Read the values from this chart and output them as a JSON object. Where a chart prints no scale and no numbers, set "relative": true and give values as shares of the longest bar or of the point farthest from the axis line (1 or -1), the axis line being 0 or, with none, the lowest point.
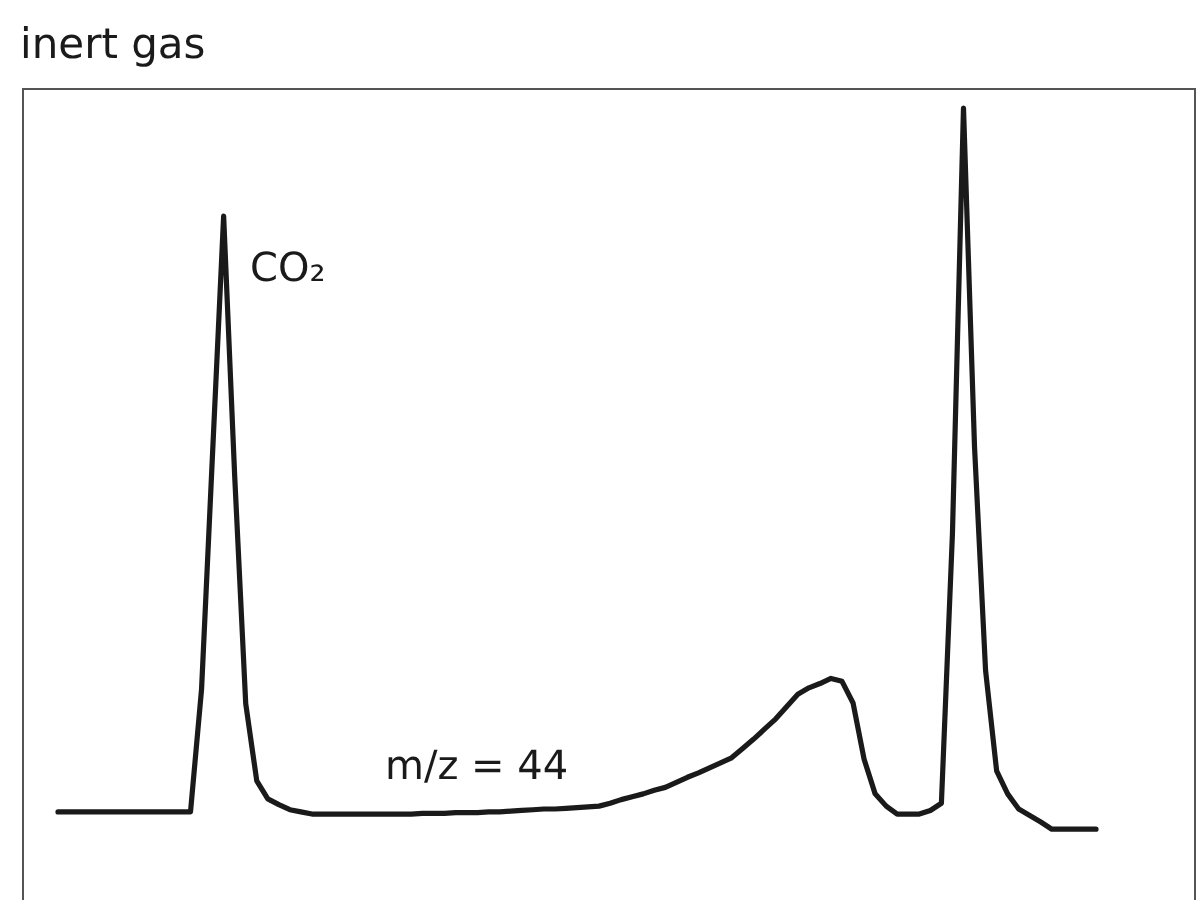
{
  "chart_data": {
    "type": "line",
    "title": "inert gas",
    "relative": true,
    "legend": false,
    "marker": "none",
    "line_style": "solid",
    "categories": [
      null,
      null,
      null,
      null,
      null,
      null,
      null,
      null,
      null,
      null,
      null,
      null,
      null,
      null,
      null,
      null,
      null,
      null,
      null,
      null,
      null,
      null,
      null,
      null,
      null,
      null,
      null,
      null,
      null,
      null,
      null,
      null,
      null,
      null,
      null,
      null,
      null,
      null,
      null,
      null,
      null,
      null,
      null,
      null,
      null,
      null,
      null,
      null,
      null,
      null,
      null,
      null,
      null,
      null,
      null,
      null,
      null,
      null,
      null,
      null,
      null,
      null,
      null,
      null,
      null,
      null,
      null,
      null,
      null,
      null,
      null,
      null,
      null,
      null,
      null,
      null,
      null,
      null,
      null,
      null,
      null,
      null,
      null,
      null,
      null,
      null,
      null,
      null,
      null,
      null,
      null,
      null,
      null,
      null,
      null
    ],
    "series": [
      {
        "color": "#1a1a1a",
        "values": [
          0.024,
          0.024,
          0.024,
          0.024,
          0.024,
          0.024,
          0.024,
          0.024,
          0.024,
          0.024,
          0.024,
          0.024,
          0.024,
          0.194,
          0.522,
          0.85,
          0.49,
          0.174,
          0.067,
          0.042,
          0.034,
          0.027,
          0.024,
          0.021,
          0.021,
          0.021,
          0.021,
          0.021,
          0.021,
          0.021,
          0.021,
          0.021,
          0.021,
          0.022,
          0.022,
          0.022,
          0.023,
          0.023,
          0.023,
          0.024,
          0.024,
          0.025,
          0.026,
          0.027,
          0.028,
          0.028,
          0.029,
          0.03,
          0.031,
          0.032,
          0.036,
          0.041,
          0.045,
          0.049,
          0.054,
          0.058,
          0.065,
          0.072,
          0.078,
          0.085,
          0.092,
          0.099,
          0.112,
          0.125,
          0.139,
          0.153,
          0.17,
          0.187,
          0.196,
          0.202,
          0.209,
          0.205,
          0.175,
          0.097,
          0.049,
          0.032,
          0.021,
          0.021,
          0.021,
          0.026,
          0.036,
          0.41,
          1,
          0.53,
          0.22,
          0.081,
          0.049,
          0.028,
          0.019,
          0.01,
          0,
          0,
          0,
          0,
          0
        ]
      }
    ],
    "annotations": [
      "CO₂",
      "m/z = 44"
    ]
  }
}
